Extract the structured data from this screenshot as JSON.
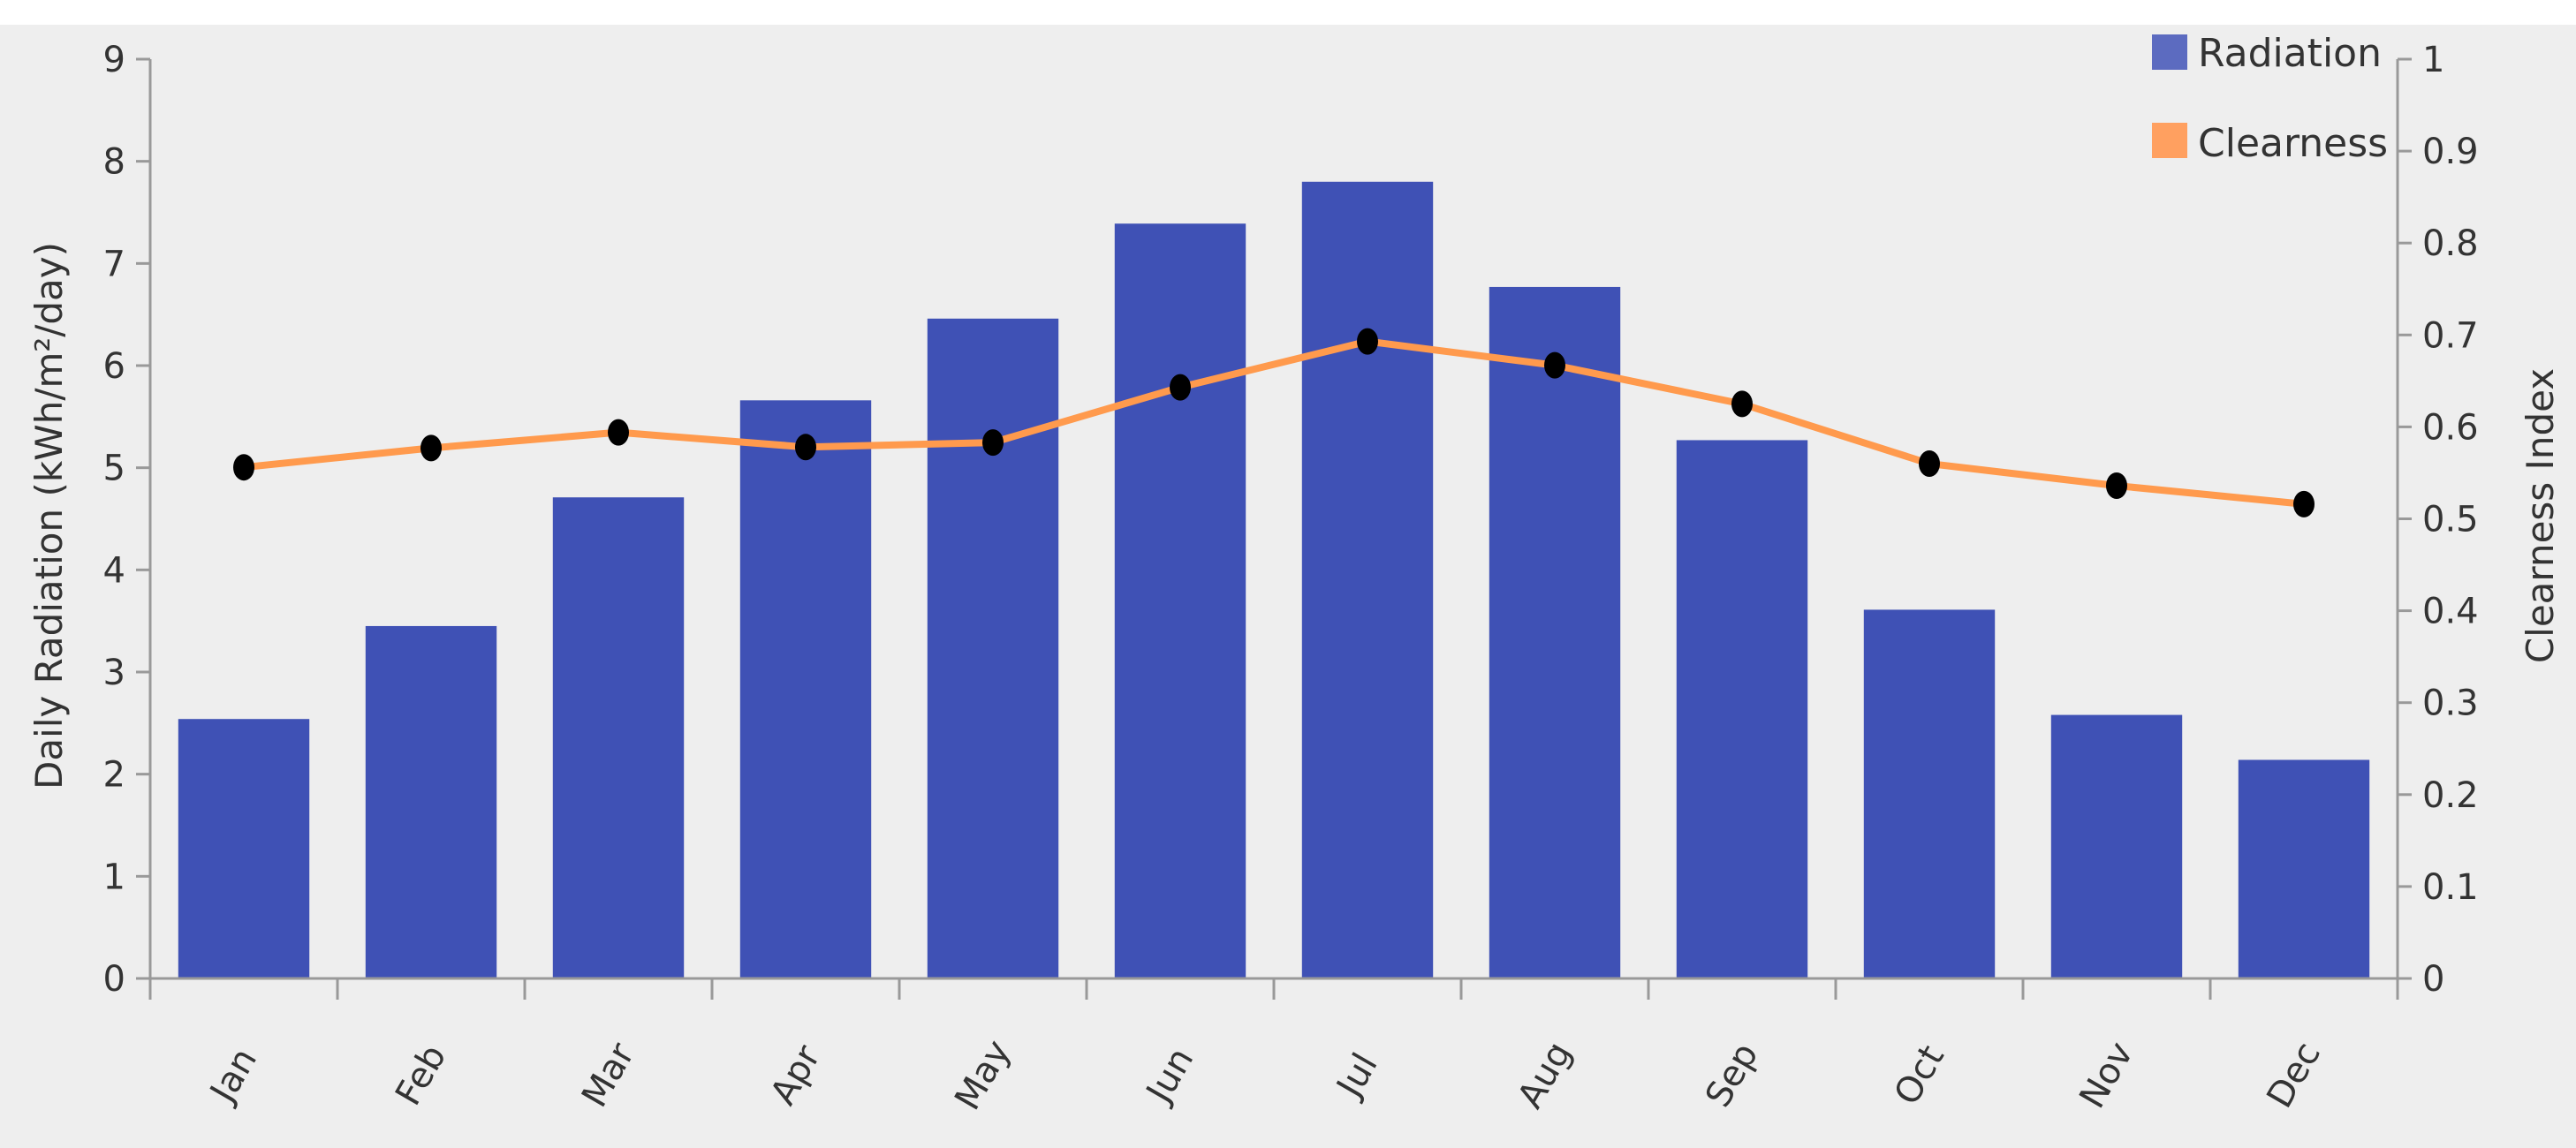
{
  "chart_data": {
    "type": "bar",
    "categories": [
      "Jan",
      "Feb",
      "Mar",
      "Apr",
      "May",
      "Jun",
      "Jul",
      "Aug",
      "Sep",
      "Oct",
      "Nov",
      "Dec"
    ],
    "series": [
      {
        "name": "Radiation",
        "type": "bar",
        "axis": "left",
        "color": "#3f51b5",
        "values": [
          2.54,
          3.45,
          4.71,
          5.66,
          6.46,
          7.39,
          7.8,
          6.77,
          5.27,
          3.61,
          2.58,
          2.14
        ]
      },
      {
        "name": "Clearness",
        "type": "line",
        "axis": "right",
        "color": "#ff9a4d",
        "marker_color": "#000000",
        "values": [
          0.556,
          0.577,
          0.594,
          0.578,
          0.583,
          0.643,
          0.693,
          0.667,
          0.625,
          0.56,
          0.536,
          0.516
        ]
      }
    ],
    "ylabel_left": "Daily Radiation (kWh/m²/day)",
    "ylabel_right": "Clearness Index",
    "ylim_left": [
      0,
      9
    ],
    "ylim_right": [
      0,
      1
    ],
    "yticks_left": [
      "0",
      "1",
      "2",
      "3",
      "4",
      "5",
      "6",
      "7",
      "8",
      "9"
    ],
    "yticks_right": [
      "0",
      "0.1",
      "0.2",
      "0.3",
      "0.4",
      "0.5",
      "0.6",
      "0.7",
      "0.8",
      "0.9",
      "1"
    ],
    "legend": [
      {
        "label": "Radiation",
        "color": "#5c6bc0"
      },
      {
        "label": "Clearness",
        "color": "#ffa060"
      }
    ],
    "legend_position": "top-right",
    "grid": false,
    "axis_color": "#999999",
    "background": "#eeeeee"
  }
}
